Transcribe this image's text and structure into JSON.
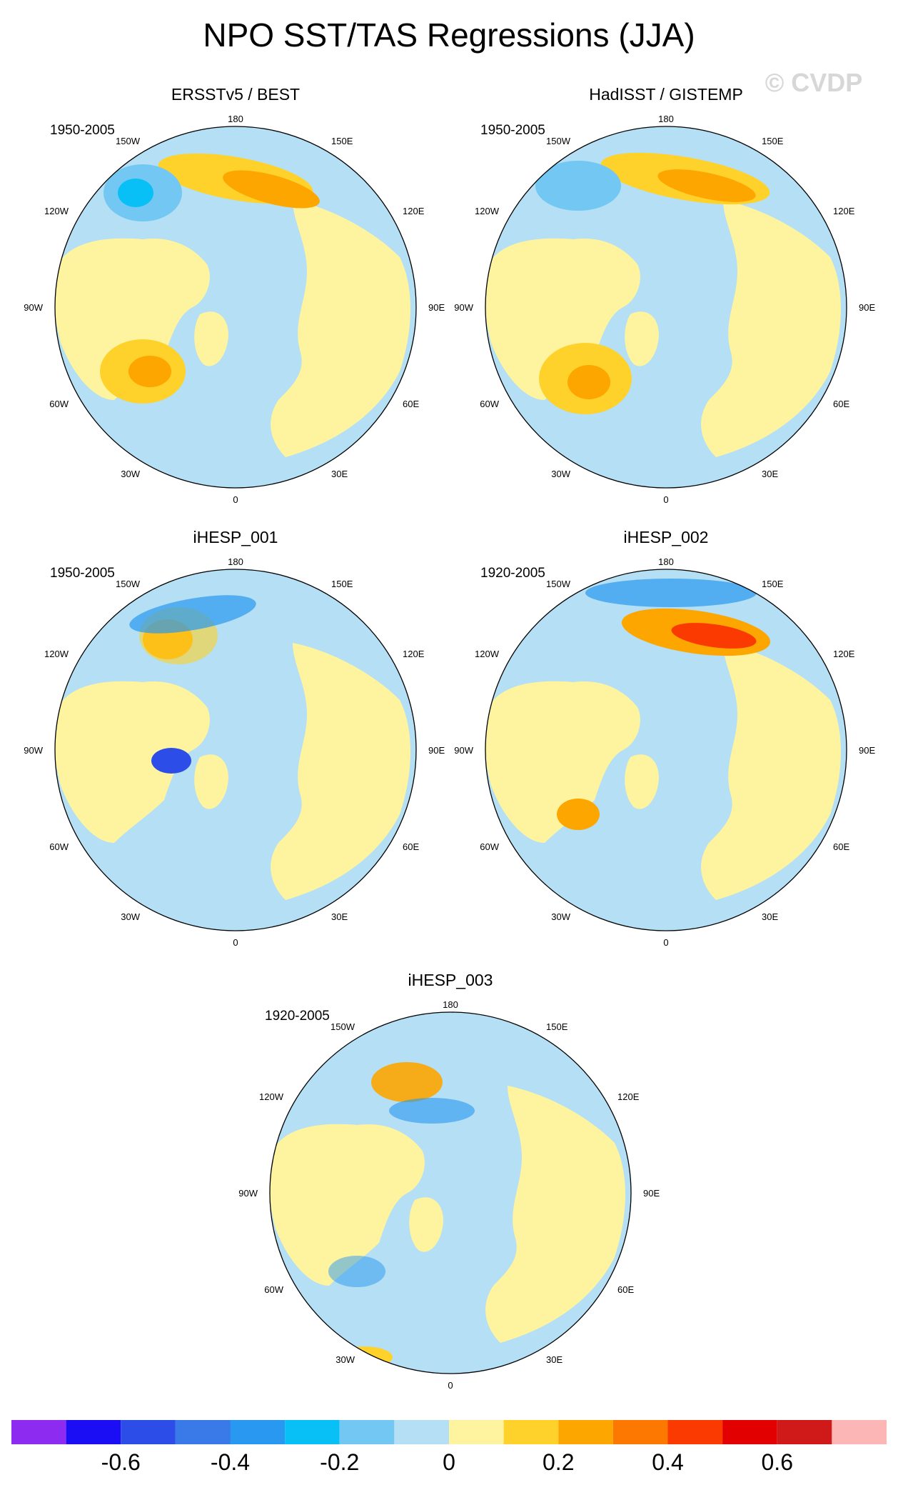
{
  "title": "NPO SST/TAS Regressions (JJA)",
  "watermark": "© CVDP",
  "lon_labels": [
    "180",
    "150E",
    "120E",
    "90E",
    "60E",
    "30E",
    "0",
    "30W",
    "60W",
    "90W",
    "120W",
    "150W"
  ],
  "panels": [
    {
      "id": "ersst",
      "title": "ERSSTv5 / BEST",
      "period": "1950-2005"
    },
    {
      "id": "hadisst",
      "title": "HadISST / GISTEMP",
      "period": "1950-2005"
    },
    {
      "id": "ihesp001",
      "title": "iHESP_001",
      "period": "1950-2005"
    },
    {
      "id": "ihesp002",
      "title": "iHESP_002",
      "period": "1920-2005"
    },
    {
      "id": "ihesp003",
      "title": "iHESP_003",
      "period": "1920-2005"
    }
  ],
  "colorbar": {
    "colors": [
      "#8d2cf0",
      "#1b0ef5",
      "#2c4de8",
      "#3a79e8",
      "#2898f0",
      "#08c0f5",
      "#72c8f2",
      "#b4dff4",
      "#fef4a0",
      "#fed22a",
      "#fda600",
      "#fc7800",
      "#fa3a00",
      "#e20000",
      "#d01a1a",
      "#fdb6b6"
    ],
    "labels": [
      "-0.6",
      "-0.4",
      "-0.2",
      "0",
      "0.2",
      "0.4",
      "0.6"
    ]
  },
  "map_colors": {
    "ocean_fill": "#b4dff4",
    "land_fill": "#fef4a0",
    "coast": "#555555"
  }
}
